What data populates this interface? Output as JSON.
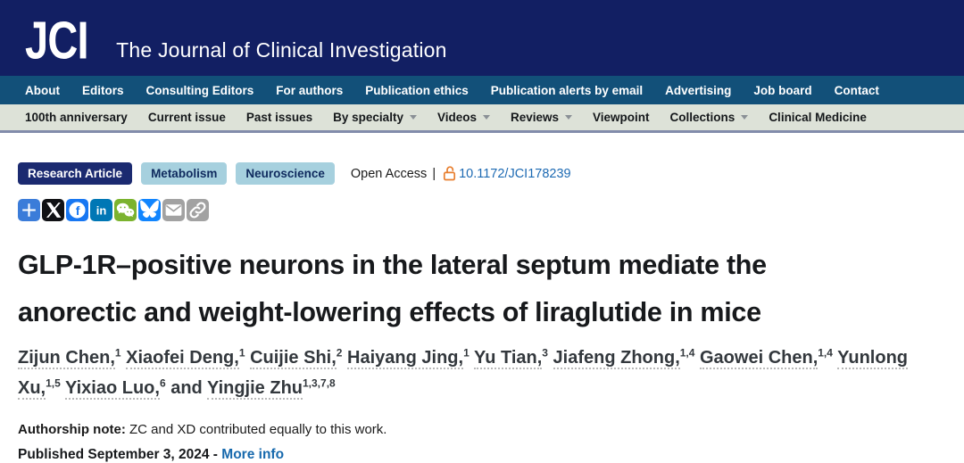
{
  "header": {
    "logo": "JCI",
    "journal_title": "The Journal of Clinical Investigation"
  },
  "main_nav": {
    "items": [
      "About",
      "Editors",
      "Consulting Editors",
      "For authors",
      "Publication ethics",
      "Publication alerts by email",
      "Advertising",
      "Job board",
      "Contact"
    ]
  },
  "sub_nav": {
    "items": [
      {
        "label": "100th anniversary",
        "dropdown": false
      },
      {
        "label": "Current issue",
        "dropdown": false
      },
      {
        "label": "Past issues",
        "dropdown": false
      },
      {
        "label": "By specialty",
        "dropdown": true
      },
      {
        "label": "Videos",
        "dropdown": true
      },
      {
        "label": "Reviews",
        "dropdown": true
      },
      {
        "label": "Viewpoint",
        "dropdown": false
      },
      {
        "label": "Collections",
        "dropdown": true
      },
      {
        "label": "Clinical Medicine",
        "dropdown": false
      }
    ]
  },
  "article": {
    "badges": [
      {
        "label": "Research Article",
        "style": "primary"
      },
      {
        "label": "Metabolism",
        "style": "secondary"
      },
      {
        "label": "Neuroscience",
        "style": "secondary"
      }
    ],
    "access": {
      "label": "Open Access",
      "separator": "|",
      "doi": "10.1172/JCI178239"
    },
    "share_icons": [
      {
        "name": "share-plus-icon",
        "label": "Share",
        "color": "#3b7cd9"
      },
      {
        "name": "x-twitter-icon",
        "label": "X",
        "color": "#101114"
      },
      {
        "name": "facebook-icon",
        "label": "Facebook",
        "color": "#1877f2"
      },
      {
        "name": "linkedin-icon",
        "label": "LinkedIn",
        "color": "#0077b5"
      },
      {
        "name": "wechat-icon",
        "label": "WeChat",
        "color": "#7bb32e"
      },
      {
        "name": "bluesky-icon",
        "label": "Bluesky",
        "color": "#1185fe"
      },
      {
        "name": "email-icon",
        "label": "Email",
        "color": "#a2a2a2"
      },
      {
        "name": "copy-link-icon",
        "label": "Link",
        "color": "#a2a2a2"
      }
    ],
    "title": "GLP-1R–positive neurons in the lateral septum mediate the anorectic and weight-lowering effects of liraglutide in mice",
    "authors": [
      {
        "name": "Zijun Chen",
        "affiliations": "1"
      },
      {
        "name": "Xiaofei Deng",
        "affiliations": "1"
      },
      {
        "name": "Cuijie Shi",
        "affiliations": "2"
      },
      {
        "name": "Haiyang Jing",
        "affiliations": "1"
      },
      {
        "name": "Yu Tian",
        "affiliations": "3"
      },
      {
        "name": "Jiafeng Zhong",
        "affiliations": "1,4"
      },
      {
        "name": "Gaowei Chen",
        "affiliations": "1,4"
      },
      {
        "name": "Yunlong Xu",
        "affiliations": "1,5"
      },
      {
        "name": "Yixiao Luo",
        "affiliations": "6"
      },
      {
        "name": "Yingjie Zhu",
        "affiliations": "1,3,7,8"
      }
    ],
    "authors_conjunction": "and",
    "authorship_note_label": "Authorship note:",
    "authorship_note_text": "ZC and XD contributed equally to this work.",
    "published_label": "Published September 3, 2024 -",
    "more_info_label": "More info"
  },
  "colors": {
    "header_navy": "#121f63",
    "nav_blue": "#125079",
    "subnav_bg": "#dde2d8",
    "badge_navy": "#1b2a70",
    "badge_lightblue": "#a6d0de",
    "link_blue": "#1d6ab3",
    "open_access_orange": "#e87f2f"
  }
}
